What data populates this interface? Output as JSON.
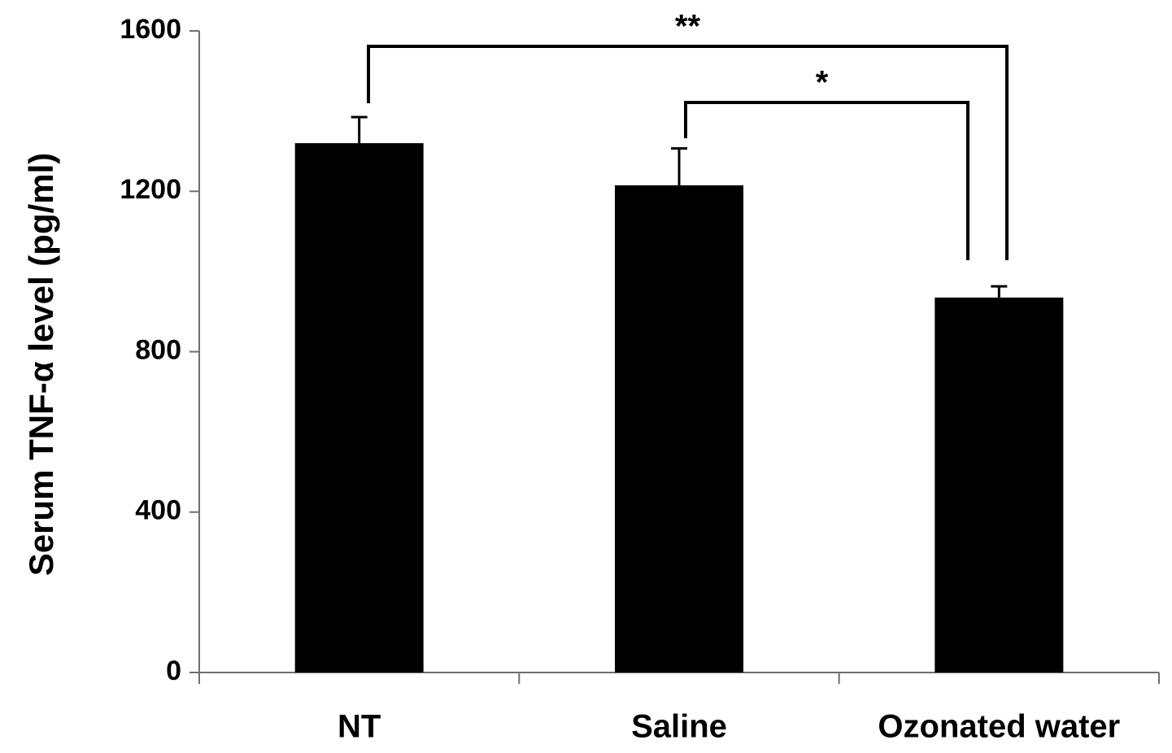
{
  "chart_data": {
    "type": "bar",
    "title": "",
    "xlabel": "",
    "ylabel": "Serum TNF-α level (pg/ml)",
    "categories": [
      "NT",
      "Saline",
      "Ozonated water"
    ],
    "values": [
      1320,
      1215,
      935
    ],
    "errors": [
      65,
      92,
      28
    ],
    "ylim": [
      0,
      1600
    ],
    "yticks": [
      "0",
      "400",
      "800",
      "1200",
      "1600"
    ],
    "bar_color": "#000000",
    "grid": false,
    "legend": "none",
    "significance": [
      {
        "from": "NT",
        "to": "Ozonated water",
        "label": "**"
      },
      {
        "from": "Saline",
        "to": "Ozonated water",
        "label": "*"
      }
    ]
  }
}
